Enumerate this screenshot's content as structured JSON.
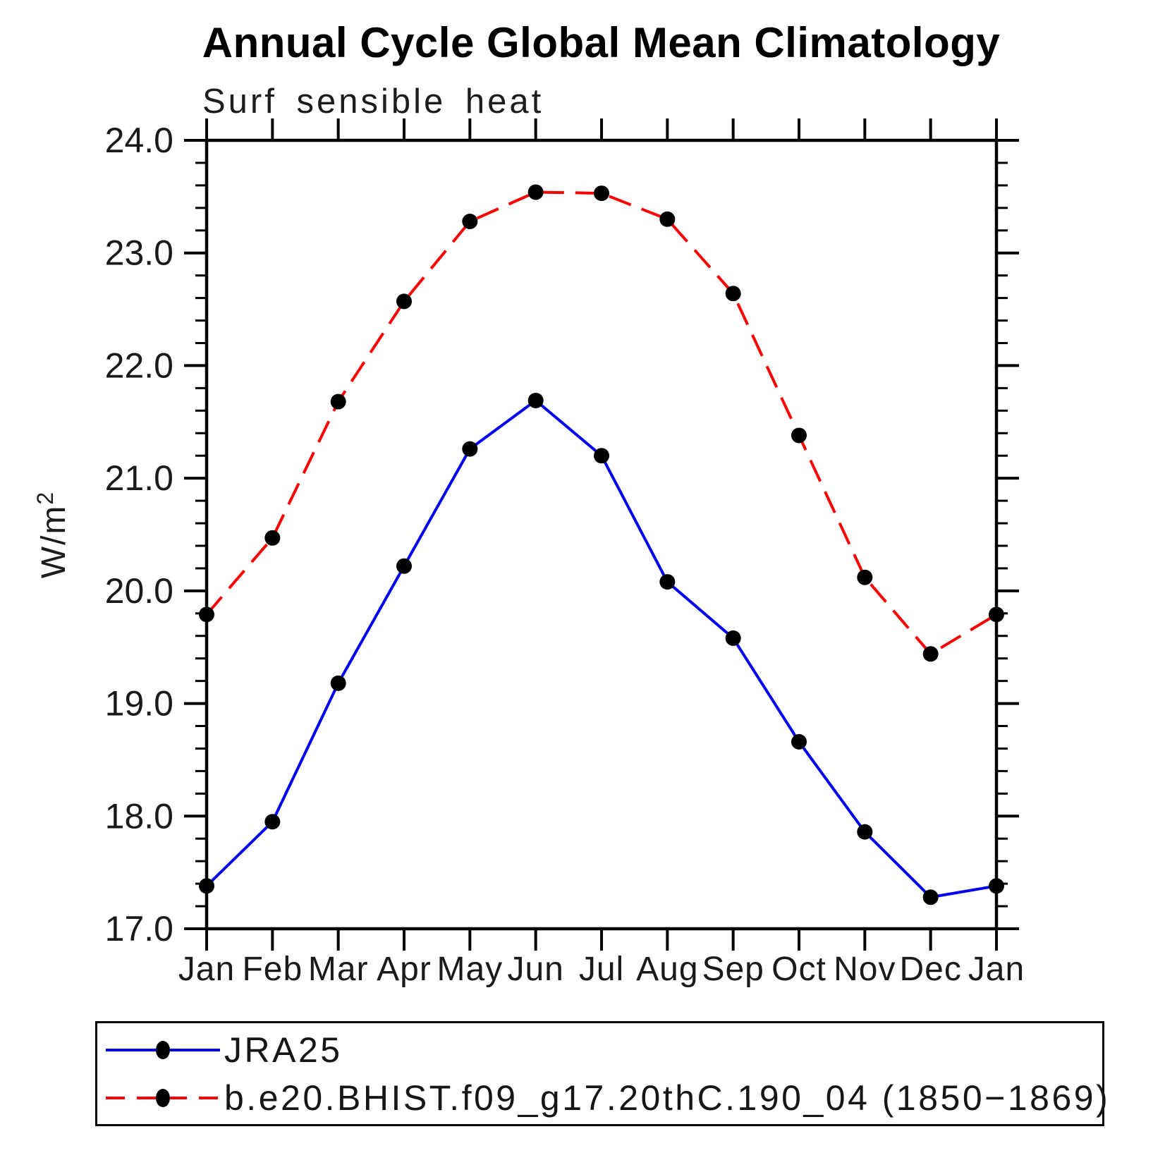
{
  "page": {
    "background": "#ffffff"
  },
  "chart_data": {
    "type": "line",
    "title": "Annual Cycle Global Mean Climatology",
    "subtitle": "Surf sensible heat",
    "ylabel": "W/m²",
    "ylabel_base": "W/m",
    "ylabel_exponent": "2",
    "categories": [
      "Jan",
      "Feb",
      "Mar",
      "Apr",
      "May",
      "Jun",
      "Jul",
      "Aug",
      "Sep",
      "Oct",
      "Nov",
      "Dec",
      "Jan"
    ],
    "ylim": [
      17.0,
      24.0
    ],
    "ytick_major_step": 1.0,
    "ytick_minor_step": 0.2,
    "grid": "off",
    "legend_position": "bottom-left-box",
    "axis_color": "#000000",
    "tick_label_color": "#1a1a1a",
    "series": [
      {
        "name": "JRA25",
        "color": "#0000f0",
        "line_style": "solid",
        "marker": "filled-circle",
        "marker_color": "#000000",
        "values": [
          17.38,
          17.95,
          19.18,
          20.22,
          21.26,
          21.69,
          21.2,
          20.08,
          19.58,
          18.66,
          17.86,
          17.28,
          17.38
        ]
      },
      {
        "name": "b.e20.BHIST.f09_g17.20thC.190_04 (1850−1869)",
        "color": "#ff0000",
        "line_style": "dashed",
        "marker": "filled-circle",
        "marker_color": "#000000",
        "values": [
          19.79,
          20.47,
          21.68,
          22.57,
          23.28,
          23.54,
          23.53,
          23.3,
          22.64,
          21.38,
          20.12,
          19.44,
          19.79
        ]
      }
    ]
  }
}
